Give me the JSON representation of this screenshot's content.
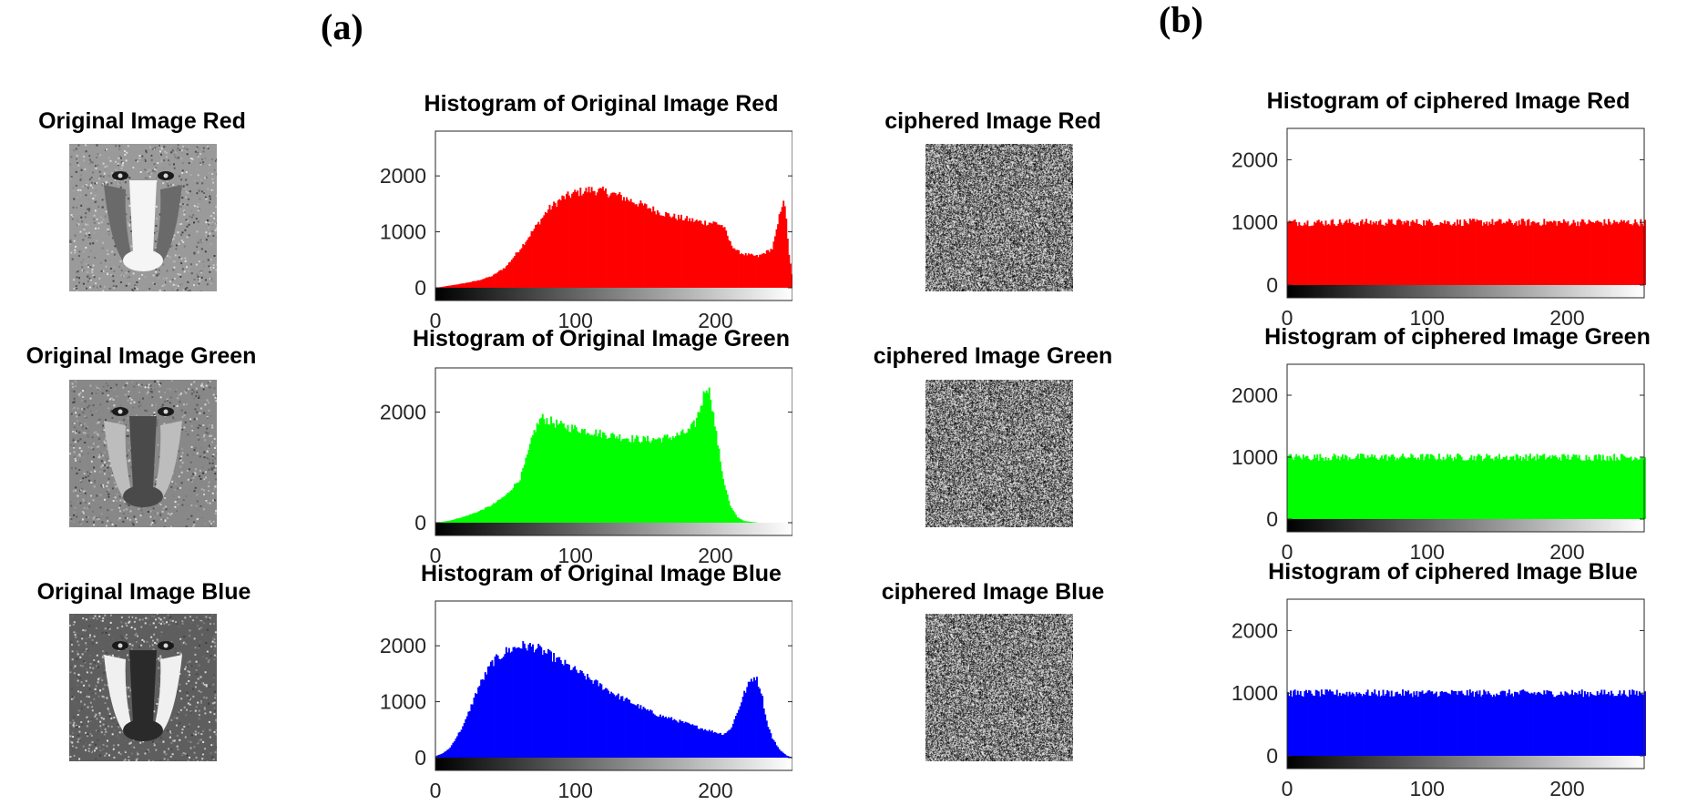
{
  "panel_labels": {
    "a": "(a)",
    "b": "(b)"
  },
  "images": {
    "original": [
      {
        "title": "Original Image Red",
        "icon": "baboon-red-channel-thumbnail"
      },
      {
        "title": "Original Image Green",
        "icon": "baboon-green-channel-thumbnail"
      },
      {
        "title": "Original Image Blue",
        "icon": "baboon-blue-channel-thumbnail"
      }
    ],
    "ciphered": [
      {
        "title": "ciphered Image Red",
        "icon": "noise-thumbnail"
      },
      {
        "title": "ciphered Image Green",
        "icon": "noise-thumbnail"
      },
      {
        "title": "ciphered Image Blue",
        "icon": "noise-thumbnail"
      }
    ]
  },
  "chart_data": [
    {
      "id": "orig-red",
      "type": "bar",
      "title": "Histogram of Original Image Red",
      "color": "#ff0000",
      "xlim": [
        0,
        255
      ],
      "ylim": [
        0,
        2800
      ],
      "xticks": [
        0,
        100,
        200
      ],
      "yticks": [
        0,
        1000,
        2000
      ],
      "colorbar": "grayscale",
      "points": [
        [
          0,
          0
        ],
        [
          10,
          40
        ],
        [
          20,
          80
        ],
        [
          30,
          130
        ],
        [
          40,
          210
        ],
        [
          50,
          380
        ],
        [
          60,
          700
        ],
        [
          70,
          1050
        ],
        [
          80,
          1400
        ],
        [
          90,
          1600
        ],
        [
          100,
          1700
        ],
        [
          110,
          1750
        ],
        [
          120,
          1720
        ],
        [
          130,
          1650
        ],
        [
          140,
          1550
        ],
        [
          150,
          1450
        ],
        [
          160,
          1350
        ],
        [
          170,
          1270
        ],
        [
          180,
          1220
        ],
        [
          190,
          1170
        ],
        [
          200,
          1160
        ],
        [
          205,
          1100
        ],
        [
          210,
          800
        ],
        [
          215,
          650
        ],
        [
          220,
          600
        ],
        [
          230,
          560
        ],
        [
          240,
          700
        ],
        [
          243,
          1000
        ],
        [
          246,
          1400
        ],
        [
          248,
          1600
        ],
        [
          250,
          1200
        ],
        [
          252,
          600
        ],
        [
          255,
          50
        ]
      ]
    },
    {
      "id": "orig-green",
      "type": "bar",
      "title": "Histogram of Original Image Green",
      "color": "#00ff00",
      "xlim": [
        0,
        255
      ],
      "ylim": [
        0,
        2800
      ],
      "xticks": [
        0,
        100,
        200
      ],
      "yticks": [
        0,
        2000
      ],
      "colorbar": "grayscale",
      "points": [
        [
          0,
          0
        ],
        [
          10,
          40
        ],
        [
          20,
          110
        ],
        [
          30,
          200
        ],
        [
          40,
          320
        ],
        [
          50,
          500
        ],
        [
          60,
          800
        ],
        [
          65,
          1200
        ],
        [
          70,
          1650
        ],
        [
          75,
          1900
        ],
        [
          80,
          1850
        ],
        [
          90,
          1750
        ],
        [
          100,
          1700
        ],
        [
          110,
          1650
        ],
        [
          120,
          1600
        ],
        [
          130,
          1560
        ],
        [
          140,
          1520
        ],
        [
          150,
          1500
        ],
        [
          160,
          1520
        ],
        [
          170,
          1560
        ],
        [
          180,
          1650
        ],
        [
          185,
          1800
        ],
        [
          190,
          2200
        ],
        [
          193,
          2500
        ],
        [
          196,
          2300
        ],
        [
          200,
          1600
        ],
        [
          205,
          800
        ],
        [
          210,
          300
        ],
        [
          215,
          100
        ],
        [
          220,
          30
        ],
        [
          230,
          0
        ],
        [
          255,
          0
        ]
      ]
    },
    {
      "id": "orig-blue",
      "type": "bar",
      "title": "Histogram of Original Image Blue",
      "color": "#0000ff",
      "xlim": [
        0,
        255
      ],
      "ylim": [
        0,
        2800
      ],
      "xticks": [
        0,
        100,
        200
      ],
      "yticks": [
        0,
        1000,
        2000
      ],
      "colorbar": "grayscale",
      "points": [
        [
          0,
          30
        ],
        [
          5,
          80
        ],
        [
          10,
          180
        ],
        [
          20,
          600
        ],
        [
          30,
          1250
        ],
        [
          40,
          1700
        ],
        [
          50,
          1900
        ],
        [
          60,
          2000
        ],
        [
          70,
          1980
        ],
        [
          80,
          1850
        ],
        [
          90,
          1700
        ],
        [
          100,
          1550
        ],
        [
          110,
          1400
        ],
        [
          120,
          1250
        ],
        [
          130,
          1100
        ],
        [
          140,
          980
        ],
        [
          150,
          850
        ],
        [
          160,
          750
        ],
        [
          170,
          680
        ],
        [
          180,
          600
        ],
        [
          190,
          520
        ],
        [
          200,
          450
        ],
        [
          205,
          420
        ],
        [
          210,
          500
        ],
        [
          215,
          800
        ],
        [
          220,
          1150
        ],
        [
          225,
          1400
        ],
        [
          228,
          1450
        ],
        [
          232,
          1200
        ],
        [
          236,
          650
        ],
        [
          240,
          350
        ],
        [
          245,
          150
        ],
        [
          250,
          40
        ],
        [
          255,
          0
        ]
      ]
    },
    {
      "id": "ciph-red",
      "type": "bar",
      "title": "Histogram of ciphered Image Red",
      "color": "#ff0000",
      "xlim": [
        0,
        255
      ],
      "ylim": [
        0,
        2500
      ],
      "xticks": [
        0,
        100,
        200
      ],
      "yticks": [
        0,
        1000,
        2000
      ],
      "colorbar": "grayscale",
      "points": [
        [
          0,
          1000
        ],
        [
          255,
          1000
        ]
      ]
    },
    {
      "id": "ciph-green",
      "type": "bar",
      "title": "Histogram of ciphered Image Green",
      "color": "#00ff00",
      "xlim": [
        0,
        255
      ],
      "ylim": [
        0,
        2500
      ],
      "xticks": [
        0,
        100,
        200
      ],
      "yticks": [
        0,
        1000,
        2000
      ],
      "colorbar": "grayscale",
      "points": [
        [
          0,
          1000
        ],
        [
          255,
          1000
        ]
      ]
    },
    {
      "id": "ciph-blue",
      "type": "bar",
      "title": "Histogram of ciphered Image Blue",
      "color": "#0000ff",
      "xlim": [
        0,
        255
      ],
      "ylim": [
        0,
        2500
      ],
      "xticks": [
        0,
        100,
        200
      ],
      "yticks": [
        0,
        1000,
        2000
      ],
      "colorbar": "grayscale",
      "points": [
        [
          0,
          1000
        ],
        [
          255,
          1000
        ]
      ]
    }
  ]
}
